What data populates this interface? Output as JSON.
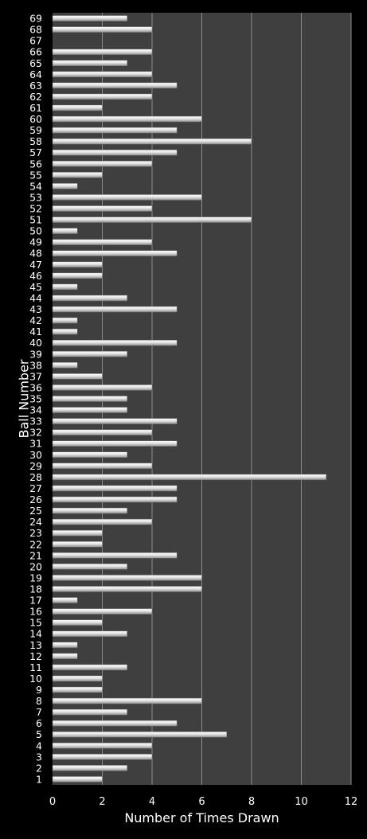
{
  "chart_data": {
    "type": "bar",
    "orientation": "horizontal",
    "xlabel": "Number of Times Drawn",
    "ylabel": "Ball Number",
    "xlim": [
      0,
      12
    ],
    "xticks": [
      0,
      2,
      4,
      6,
      8,
      10,
      12
    ],
    "grid": true,
    "categories": [
      "1",
      "2",
      "3",
      "4",
      "5",
      "6",
      "7",
      "8",
      "9",
      "10",
      "11",
      "12",
      "13",
      "14",
      "15",
      "16",
      "17",
      "18",
      "19",
      "20",
      "21",
      "22",
      "23",
      "24",
      "25",
      "26",
      "27",
      "28",
      "29",
      "30",
      "31",
      "32",
      "33",
      "34",
      "35",
      "36",
      "37",
      "38",
      "39",
      "40",
      "41",
      "42",
      "43",
      "44",
      "45",
      "46",
      "47",
      "48",
      "49",
      "50",
      "51",
      "52",
      "53",
      "54",
      "55",
      "56",
      "57",
      "58",
      "59",
      "60",
      "61",
      "62",
      "63",
      "64",
      "65",
      "66",
      "67",
      "68",
      "69"
    ],
    "values": [
      2,
      3,
      4,
      4,
      7,
      5,
      3,
      6,
      2,
      2,
      3,
      1,
      1,
      3,
      2,
      4,
      1,
      6,
      6,
      3,
      5,
      2,
      2,
      4,
      3,
      5,
      5,
      11,
      4,
      3,
      5,
      4,
      5,
      3,
      3,
      4,
      2,
      1,
      3,
      5,
      1,
      1,
      5,
      3,
      1,
      2,
      2,
      5,
      4,
      1,
      8,
      4,
      6,
      1,
      2,
      4,
      5,
      8,
      5,
      6,
      2,
      4,
      5,
      4,
      3,
      4,
      0,
      4,
      3
    ]
  },
  "colors": {
    "background": "#000000",
    "plot_area": "#3f3f3f",
    "gridline": "#8c8c8c",
    "bar_light": "#ffffff",
    "bar_mid": "#e4e4e4",
    "bar_dark": "#8f8f8f",
    "text": "#ffffff"
  }
}
